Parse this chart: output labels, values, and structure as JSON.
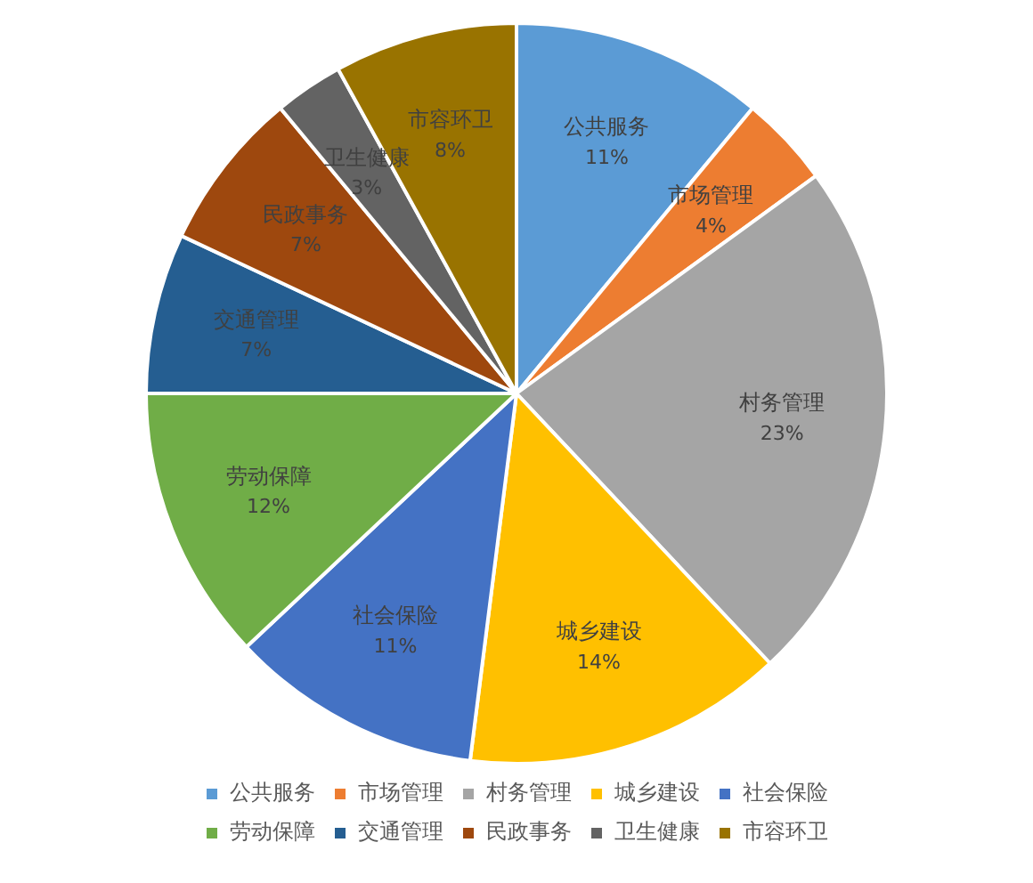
{
  "chart_data": {
    "type": "pie",
    "categories": [
      "公共服务",
      "市场管理",
      "村务管理",
      "城乡建设",
      "社会保险",
      "劳动保障",
      "交通管理",
      "民政事务",
      "卫生健康",
      "市容环卫"
    ],
    "values": [
      11,
      4,
      23,
      14,
      11,
      12,
      7,
      7,
      3,
      8
    ],
    "value_labels": [
      "11%",
      "4%",
      "23%",
      "14%",
      "11%",
      "12%",
      "7%",
      "7%",
      "3%",
      "8%"
    ],
    "colors": [
      "#5b9bd5",
      "#ed7d31",
      "#a5a5a5",
      "#ffc000",
      "#4472c4",
      "#70ad47",
      "#255e91",
      "#9e480e",
      "#636363",
      "#997300"
    ],
    "legend": "bottom"
  }
}
